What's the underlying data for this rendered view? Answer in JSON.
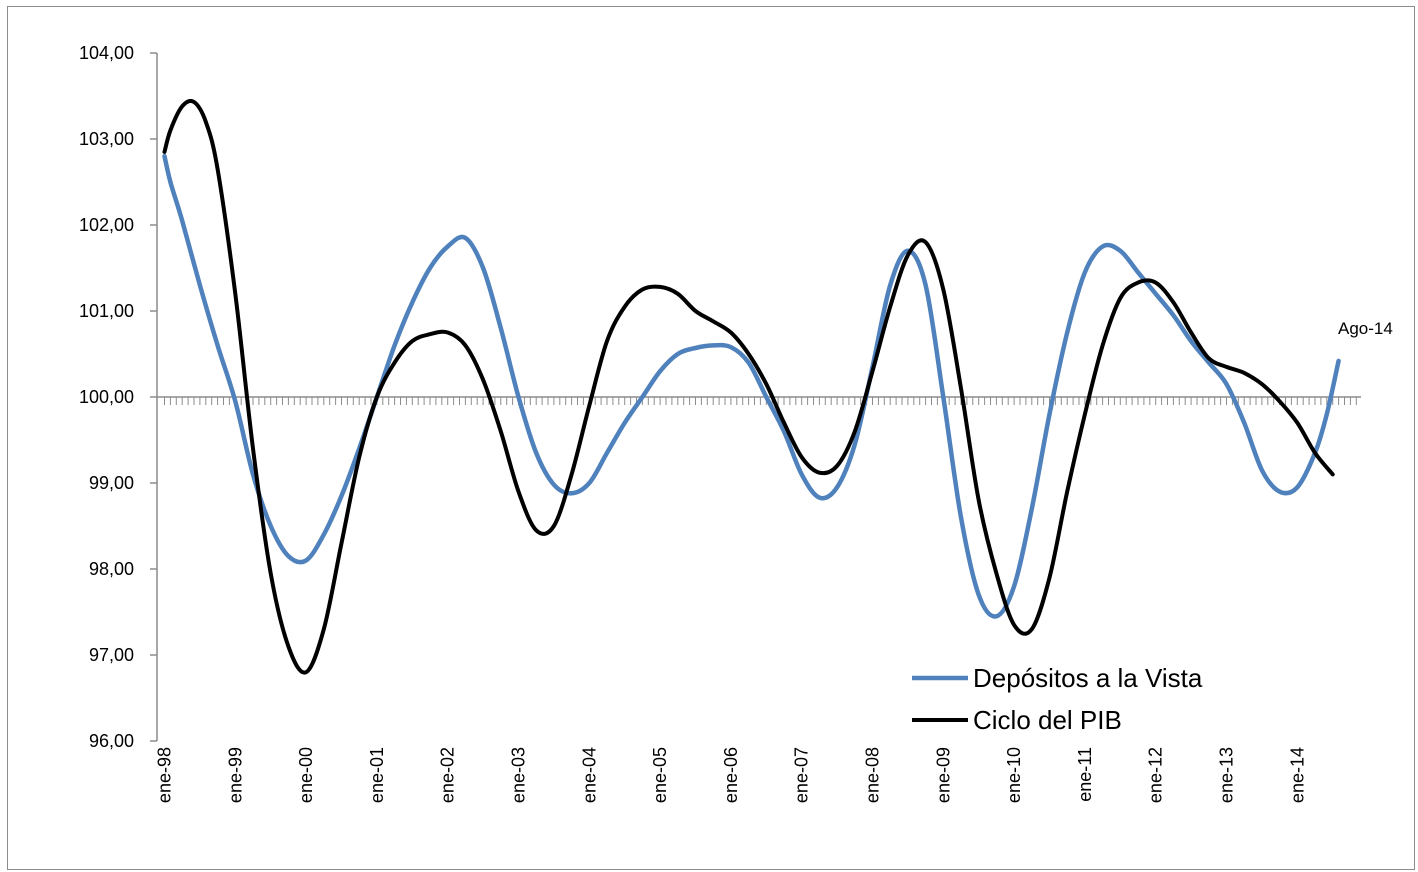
{
  "chart_data": {
    "type": "line",
    "title": "",
    "xlabel": "",
    "ylabel": "",
    "ylim": [
      96,
      104
    ],
    "y_ticks": [
      "96,00",
      "97,00",
      "98,00",
      "99,00",
      "100,00",
      "101,00",
      "102,00",
      "103,00",
      "104,00"
    ],
    "x_ticks": [
      "ene-98",
      "ene-99",
      "ene-00",
      "ene-01",
      "ene-02",
      "ene-03",
      "ene-04",
      "ene-05",
      "ene-06",
      "ene-07",
      "ene-08",
      "ene-09",
      "ene-10",
      "ene-11",
      "ene-12",
      "ene-13",
      "ene-14"
    ],
    "x_range": [
      "1998-01",
      "2014-08"
    ],
    "reference_line": 100,
    "legend_position": "bottom-right",
    "annotation": "Ago-14",
    "colors": {
      "depositos": "#4f81bd",
      "pib": "#000000",
      "reference": "#8c8c8c"
    },
    "series": [
      {
        "name": "Depósitos a la Vista",
        "points": [
          [
            "1998-01",
            102.8
          ],
          [
            "1998-02",
            102.5
          ],
          [
            "1998-04",
            102.05
          ],
          [
            "1998-07",
            101.3
          ],
          [
            "1998-10",
            100.6
          ],
          [
            "1999-01",
            99.95
          ],
          [
            "1999-04",
            99.1
          ],
          [
            "1999-07",
            98.5
          ],
          [
            "1999-10",
            98.15
          ],
          [
            "2000-01",
            98.1
          ],
          [
            "2000-04",
            98.4
          ],
          [
            "2000-07",
            98.85
          ],
          [
            "2000-10",
            99.4
          ],
          [
            "2001-01",
            100.0
          ],
          [
            "2001-04",
            100.6
          ],
          [
            "2001-07",
            101.1
          ],
          [
            "2001-10",
            101.5
          ],
          [
            "2002-01",
            101.75
          ],
          [
            "2002-04",
            101.85
          ],
          [
            "2002-07",
            101.5
          ],
          [
            "2002-10",
            100.8
          ],
          [
            "2003-01",
            100.0
          ],
          [
            "2003-04",
            99.35
          ],
          [
            "2003-07",
            98.98
          ],
          [
            "2003-10",
            98.88
          ],
          [
            "2004-01",
            99.0
          ],
          [
            "2004-04",
            99.35
          ],
          [
            "2004-07",
            99.7
          ],
          [
            "2004-10",
            100.0
          ],
          [
            "2005-01",
            100.3
          ],
          [
            "2005-04",
            100.5
          ],
          [
            "2005-07",
            100.57
          ],
          [
            "2005-10",
            100.6
          ],
          [
            "2006-01",
            100.58
          ],
          [
            "2006-04",
            100.4
          ],
          [
            "2006-07",
            100.0
          ],
          [
            "2006-10",
            99.6
          ],
          [
            "2007-01",
            99.1
          ],
          [
            "2007-04",
            98.83
          ],
          [
            "2007-07",
            98.95
          ],
          [
            "2007-10",
            99.45
          ],
          [
            "2008-01",
            100.35
          ],
          [
            "2008-04",
            101.3
          ],
          [
            "2008-07",
            101.7
          ],
          [
            "2008-10",
            101.3
          ],
          [
            "2009-01",
            100.0
          ],
          [
            "2009-04",
            98.6
          ],
          [
            "2009-07",
            97.7
          ],
          [
            "2009-10",
            97.45
          ],
          [
            "2010-01",
            97.8
          ],
          [
            "2010-04",
            98.7
          ],
          [
            "2010-07",
            99.8
          ],
          [
            "2010-10",
            100.75
          ],
          [
            "2011-01",
            101.45
          ],
          [
            "2011-04",
            101.75
          ],
          [
            "2011-07",
            101.7
          ],
          [
            "2011-10",
            101.45
          ],
          [
            "2012-01",
            101.2
          ],
          [
            "2012-04",
            100.95
          ],
          [
            "2012-07",
            100.65
          ],
          [
            "2012-10",
            100.4
          ],
          [
            "2013-01",
            100.15
          ],
          [
            "2013-04",
            99.7
          ],
          [
            "2013-07",
            99.15
          ],
          [
            "2013-10",
            98.9
          ],
          [
            "2014-01",
            98.95
          ],
          [
            "2014-04",
            99.35
          ],
          [
            "2014-06",
            99.8
          ],
          [
            "2014-08",
            100.42
          ]
        ]
      },
      {
        "name": "Ciclo del PIB",
        "points": [
          [
            "1998-01",
            102.85
          ],
          [
            "1998-02",
            103.1
          ],
          [
            "1998-04",
            103.38
          ],
          [
            "1998-06",
            103.43
          ],
          [
            "1998-08",
            103.2
          ],
          [
            "1998-10",
            102.65
          ],
          [
            "1999-01",
            101.2
          ],
          [
            "1999-04",
            99.4
          ],
          [
            "1999-07",
            97.95
          ],
          [
            "1999-10",
            97.1
          ],
          [
            "2000-01",
            96.8
          ],
          [
            "2000-04",
            97.3
          ],
          [
            "2000-07",
            98.3
          ],
          [
            "2000-10",
            99.3
          ],
          [
            "2001-01",
            100.0
          ],
          [
            "2001-04",
            100.4
          ],
          [
            "2001-07",
            100.65
          ],
          [
            "2001-10",
            100.73
          ],
          [
            "2002-01",
            100.75
          ],
          [
            "2002-04",
            100.6
          ],
          [
            "2002-07",
            100.2
          ],
          [
            "2002-10",
            99.6
          ],
          [
            "2003-01",
            98.9
          ],
          [
            "2003-04",
            98.45
          ],
          [
            "2003-07",
            98.5
          ],
          [
            "2003-10",
            99.1
          ],
          [
            "2004-01",
            99.9
          ],
          [
            "2004-04",
            100.65
          ],
          [
            "2004-07",
            101.05
          ],
          [
            "2004-10",
            101.25
          ],
          [
            "2005-01",
            101.28
          ],
          [
            "2005-04",
            101.2
          ],
          [
            "2005-07",
            101.0
          ],
          [
            "2005-10",
            100.88
          ],
          [
            "2006-01",
            100.75
          ],
          [
            "2006-04",
            100.5
          ],
          [
            "2006-07",
            100.15
          ],
          [
            "2006-10",
            99.7
          ],
          [
            "2007-01",
            99.3
          ],
          [
            "2007-04",
            99.12
          ],
          [
            "2007-07",
            99.2
          ],
          [
            "2007-10",
            99.6
          ],
          [
            "2008-01",
            100.3
          ],
          [
            "2008-04",
            101.05
          ],
          [
            "2008-07",
            101.65
          ],
          [
            "2008-10",
            101.8
          ],
          [
            "2009-01",
            101.25
          ],
          [
            "2009-04",
            100.1
          ],
          [
            "2009-07",
            98.8
          ],
          [
            "2009-10",
            97.95
          ],
          [
            "2010-01",
            97.35
          ],
          [
            "2010-04",
            97.3
          ],
          [
            "2010-07",
            97.9
          ],
          [
            "2010-10",
            98.9
          ],
          [
            "2011-01",
            99.8
          ],
          [
            "2011-04",
            100.6
          ],
          [
            "2011-07",
            101.15
          ],
          [
            "2011-10",
            101.33
          ],
          [
            "2012-01",
            101.33
          ],
          [
            "2012-04",
            101.1
          ],
          [
            "2012-07",
            100.75
          ],
          [
            "2012-10",
            100.45
          ],
          [
            "2013-01",
            100.35
          ],
          [
            "2013-04",
            100.28
          ],
          [
            "2013-07",
            100.15
          ],
          [
            "2013-10",
            99.95
          ],
          [
            "2014-01",
            99.7
          ],
          [
            "2014-04",
            99.35
          ],
          [
            "2014-07",
            99.1
          ]
        ]
      }
    ]
  }
}
